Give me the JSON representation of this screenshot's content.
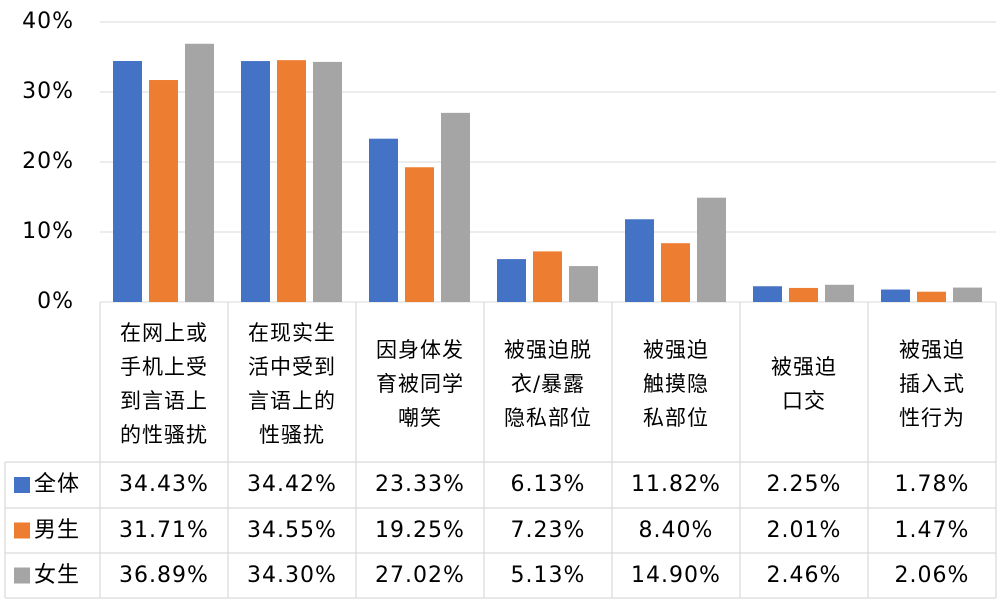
{
  "chart_data": {
    "type": "bar",
    "categories": [
      "在网上或\n手机上受\n到言语上\n的性骚扰",
      "在现实生\n活中受到\n言语上的\n性骚扰",
      "因身体发\n育被同学\n嘲笑",
      "被强迫脱\n衣/暴露\n隐私部位",
      "被强迫\n触摸隐\n私部位",
      "被强迫\n口交",
      "被强迫\n插入式\n性行为"
    ],
    "series": [
      {
        "name": "全体",
        "color": "#4472c4",
        "values": [
          34.43,
          34.42,
          23.33,
          6.13,
          11.82,
          2.25,
          1.78
        ],
        "value_labels": [
          "34.43%",
          "34.42%",
          "23.33%",
          "6.13%",
          "11.82%",
          "2.25%",
          "1.78%"
        ]
      },
      {
        "name": "男生",
        "color": "#ed7d31",
        "values": [
          31.71,
          34.55,
          19.25,
          7.23,
          8.4,
          2.01,
          1.47
        ],
        "value_labels": [
          "31.71%",
          "34.55%",
          "19.25%",
          "7.23%",
          "8.40%",
          "2.01%",
          "1.47%"
        ]
      },
      {
        "name": "女生",
        "color": "#a5a5a5",
        "values": [
          36.89,
          34.3,
          27.02,
          5.13,
          14.9,
          2.46,
          2.06
        ],
        "value_labels": [
          "36.89%",
          "34.30%",
          "27.02%",
          "5.13%",
          "14.90%",
          "2.46%",
          "2.06%"
        ]
      }
    ],
    "ylim": [
      0,
      40
    ],
    "yticks": [
      {
        "value": 0,
        "label": "0%"
      },
      {
        "value": 10,
        "label": "10%"
      },
      {
        "value": 20,
        "label": "20%"
      },
      {
        "value": 30,
        "label": "30%"
      },
      {
        "value": 40,
        "label": "40%"
      }
    ],
    "grid": true
  }
}
